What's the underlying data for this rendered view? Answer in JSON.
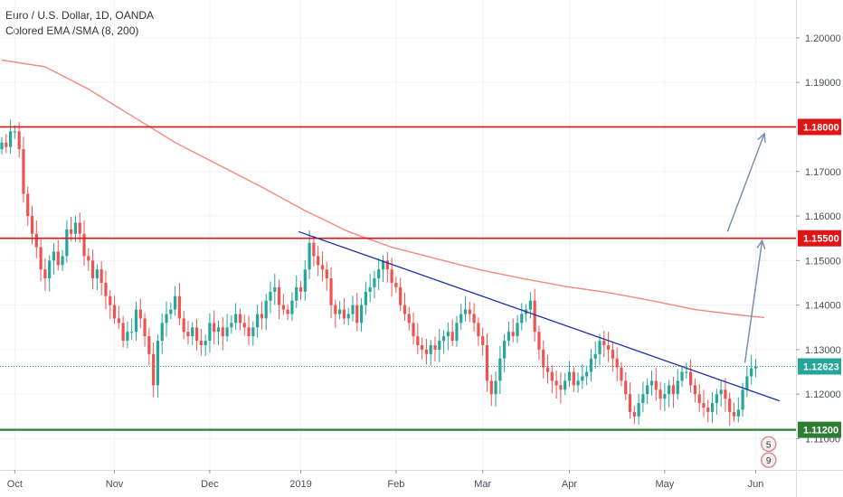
{
  "legend": {
    "symbol_line": "Euro / U.S. Dollar, 1D, OANDA",
    "indicator_line": "Colored EMA /SMA (8, 200)"
  },
  "colors": {
    "up": "#26a69a",
    "down": "#ef5350",
    "sma200": "#f8877f",
    "resistance": "#e01616",
    "support": "#2e7d32",
    "trendline": "#1a2fa8",
    "arrow": "#7b8fb0",
    "price_dotted": "#26a69a"
  },
  "chart_data": {
    "type": "candlestick",
    "symbol": "Euro / U.S. Dollar",
    "timeframe": "1D",
    "source": "OANDA",
    "ylim": [
      1.103,
      1.2085
    ],
    "y_ticks": [
      "1.20000",
      "1.19000",
      "1.17000",
      "1.16000",
      "1.15000",
      "1.14000",
      "1.13000",
      "1.12000",
      "1.11000"
    ],
    "x_ticks": [
      {
        "label": "Oct",
        "index": 3
      },
      {
        "label": "Nov",
        "index": 26
      },
      {
        "label": "Dec",
        "index": 48
      },
      {
        "label": "2019",
        "index": 69
      },
      {
        "label": "Feb",
        "index": 91
      },
      {
        "label": "Mar",
        "index": 111
      },
      {
        "label": "Apr",
        "index": 131
      },
      {
        "label": "May",
        "index": 153
      },
      {
        "label": "Jun",
        "index": 174
      }
    ],
    "n_slots": 186,
    "closes": [
      1.1765,
      1.1755,
      1.179,
      1.179,
      1.175,
      1.165,
      1.16,
      1.156,
      1.153,
      1.148,
      1.146,
      1.15,
      1.152,
      1.149,
      1.151,
      1.157,
      1.156,
      1.1585,
      1.156,
      1.151,
      1.15,
      1.146,
      1.148,
      1.145,
      1.142,
      1.14,
      1.137,
      1.136,
      1.132,
      1.134,
      1.134,
      1.139,
      1.137,
      1.133,
      1.129,
      1.122,
      1.132,
      1.136,
      1.138,
      1.139,
      1.142,
      1.137,
      1.134,
      1.133,
      1.135,
      1.132,
      1.131,
      1.132,
      1.136,
      1.134,
      1.135,
      1.133,
      1.135,
      1.136,
      1.138,
      1.136,
      1.135,
      1.133,
      1.135,
      1.138,
      1.137,
      1.141,
      1.143,
      1.144,
      1.14,
      1.139,
      1.138,
      1.141,
      1.144,
      1.143,
      1.148,
      1.154,
      1.151,
      1.149,
      1.148,
      1.146,
      1.14,
      1.138,
      1.139,
      1.137,
      1.138,
      1.14,
      1.136,
      1.14,
      1.143,
      1.144,
      1.146,
      1.148,
      1.15,
      1.148,
      1.145,
      1.144,
      1.14,
      1.138,
      1.136,
      1.133,
      1.131,
      1.13,
      1.129,
      1.131,
      1.13,
      1.132,
      1.133,
      1.134,
      1.132,
      1.136,
      1.138,
      1.139,
      1.138,
      1.136,
      1.133,
      1.131,
      1.123,
      1.12,
      1.123,
      1.128,
      1.132,
      1.134,
      1.133,
      1.136,
      1.138,
      1.139,
      1.141,
      1.134,
      1.13,
      1.126,
      1.125,
      1.123,
      1.122,
      1.121,
      1.123,
      1.125,
      1.122,
      1.123,
      1.124,
      1.125,
      1.128,
      1.129,
      1.132,
      1.131,
      1.13,
      1.128,
      1.126,
      1.123,
      1.12,
      1.116,
      1.115,
      1.118,
      1.12,
      1.122,
      1.123,
      1.121,
      1.119,
      1.12,
      1.122,
      1.12,
      1.123,
      1.125,
      1.125,
      1.122,
      1.12,
      1.118,
      1.117,
      1.116,
      1.118,
      1.12,
      1.121,
      1.119,
      1.116,
      1.115,
      1.1165,
      1.121,
      1.124,
      1.1258,
      1.1262
    ],
    "sma200_points": [
      [
        0,
        1.195
      ],
      [
        10,
        1.1935
      ],
      [
        20,
        1.1885
      ],
      [
        30,
        1.1825
      ],
      [
        40,
        1.1765
      ],
      [
        50,
        1.1715
      ],
      [
        60,
        1.1665
      ],
      [
        70,
        1.1612
      ],
      [
        80,
        1.1565
      ],
      [
        90,
        1.153
      ],
      [
        100,
        1.1505
      ],
      [
        110,
        1.148
      ],
      [
        120,
        1.146
      ],
      [
        130,
        1.1442
      ],
      [
        140,
        1.1428
      ],
      [
        150,
        1.141
      ],
      [
        160,
        1.139
      ],
      [
        170,
        1.1378
      ],
      [
        176,
        1.1372
      ]
    ],
    "horizontal_levels": [
      {
        "label": "1.18000",
        "price": 1.18,
        "kind": "resistance"
      },
      {
        "label": "1.15500",
        "price": 1.155,
        "kind": "resistance"
      },
      {
        "label": "1.11200",
        "price": 1.112,
        "kind": "support"
      }
    ],
    "last_price": {
      "label": "1.12623",
      "price": 1.12623
    },
    "trendline": {
      "from": [
        68.5,
        1.1565
      ],
      "to": [
        179.5,
        1.1185
      ]
    },
    "arrows": [
      {
        "from": [
          171.5,
          1.127
        ],
        "to": [
          175.5,
          1.1545
        ]
      },
      {
        "from": [
          167.5,
          1.1565
        ],
        "to": [
          176,
          1.1785
        ]
      }
    ],
    "event_markers": [
      {
        "label": "5",
        "index": 177,
        "price": 1.1088
      },
      {
        "label": "9",
        "index": 177,
        "price": 1.1052
      }
    ]
  }
}
